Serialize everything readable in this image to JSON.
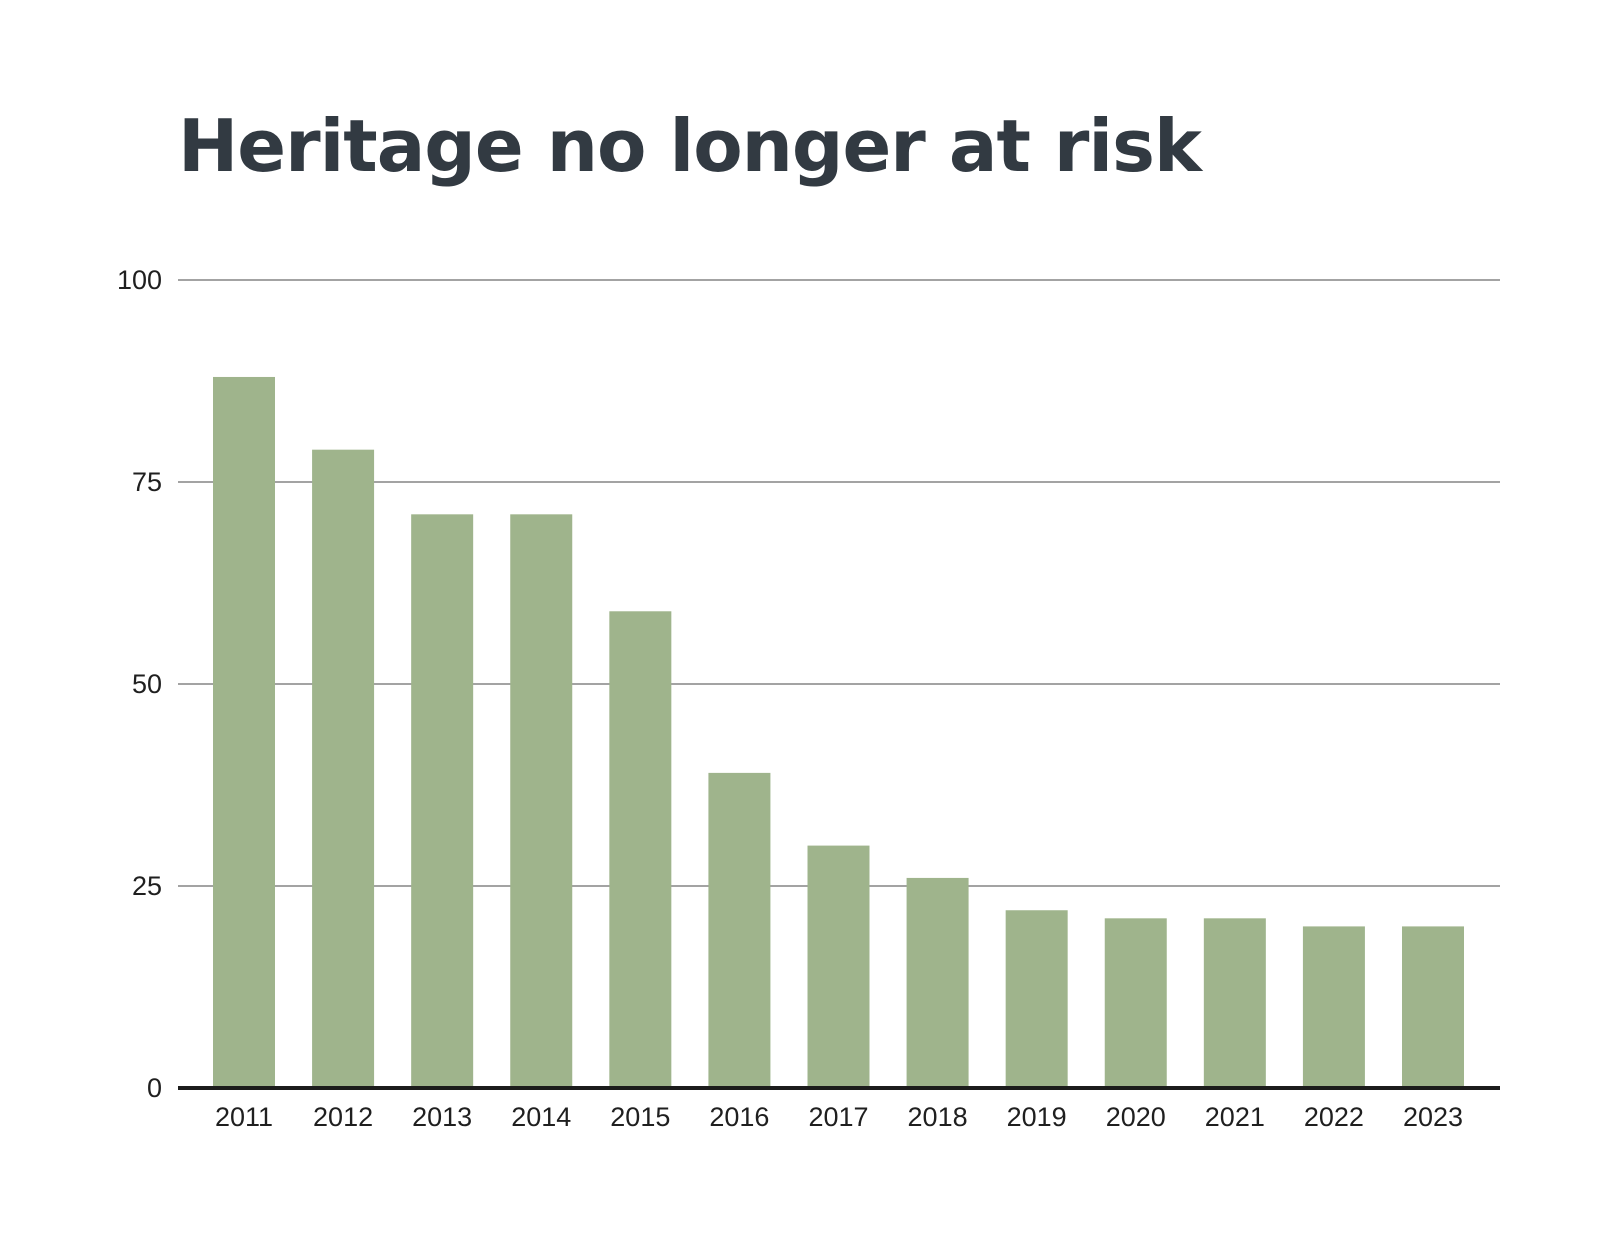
{
  "chart_data": {
    "type": "bar",
    "title": "Heritage no longer at risk",
    "xlabel": "",
    "ylabel": "",
    "categories": [
      "2011",
      "2012",
      "2013",
      "2014",
      "2015",
      "2016",
      "2017",
      "2018",
      "2019",
      "2020",
      "2021",
      "2022",
      "2023"
    ],
    "values": [
      88,
      79,
      71,
      71,
      59,
      39,
      30,
      26,
      22,
      21,
      21,
      20,
      20
    ],
    "ylim": [
      0,
      100
    ],
    "yticks": [
      0,
      25,
      50,
      75,
      100
    ],
    "grid": true,
    "legend": "none",
    "colors": {
      "bar": "#9fb48c",
      "grid": "#a3a3a3",
      "baseline": "#1c1c1c",
      "title": "#323a42"
    }
  }
}
